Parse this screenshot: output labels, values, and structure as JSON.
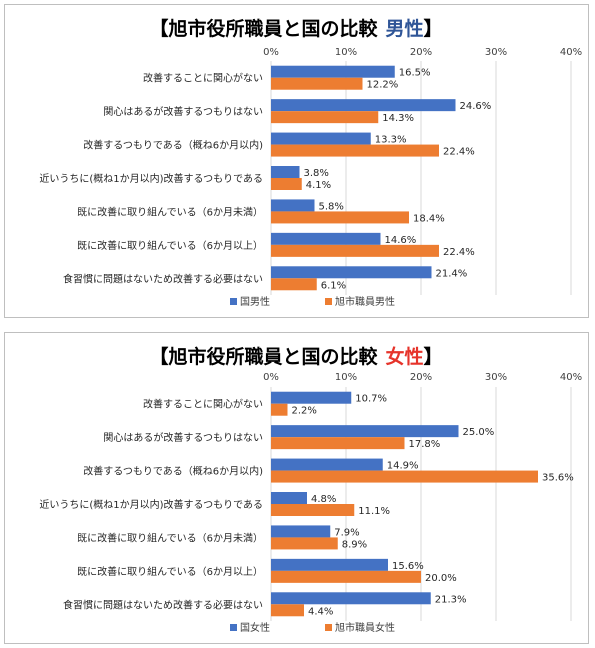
{
  "chart_data": [
    {
      "type": "bar",
      "orientation": "horizontal",
      "title_parts": {
        "open": "【",
        "main": "旭市役所職員と国の比較",
        "gender": "男性",
        "close": "】"
      },
      "gender_color": "#2f5597",
      "categories": [
        "改善することに関心がない",
        "関心はあるが改善するつもりはない",
        "改善するつもりである（概ね6か月以内)",
        "近いうちに(概ね1か月以内)改善するつもりである",
        "既に改善に取り組んでいる（6か月未満）",
        "既に改善に取り組んでいる（6か月以上）",
        "食習慣に問題はないため改善する必要はない"
      ],
      "series": [
        {
          "name": "国男性",
          "color": "#4472c4",
          "values": [
            16.5,
            24.6,
            13.3,
            3.8,
            5.8,
            14.6,
            21.4
          ],
          "value_labels": [
            "16.5%",
            "24.6%",
            "13.3%",
            "3.8%",
            "5.8%",
            "14.6%",
            "21.4%"
          ]
        },
        {
          "name": "旭市職員男性",
          "color": "#ed7d31",
          "values": [
            12.2,
            14.3,
            22.4,
            4.1,
            18.4,
            22.4,
            6.1
          ],
          "value_labels": [
            "12.2%",
            "14.3%",
            "22.4%",
            "4.1%",
            "18.4%",
            "22.4%",
            "6.1%"
          ]
        }
      ],
      "xlim": [
        0,
        40
      ],
      "ticks": [
        0,
        10,
        20,
        30,
        40
      ],
      "tick_labels": [
        "0%",
        "10%",
        "20%",
        "30%",
        "40%"
      ],
      "grid": true,
      "legend_position": "bottom"
    },
    {
      "type": "bar",
      "orientation": "horizontal",
      "title_parts": {
        "open": "【",
        "main": "旭市役所職員と国の比較",
        "gender": "女性",
        "close": "】"
      },
      "gender_color": "#e6332a",
      "categories": [
        "改善することに関心がない",
        "関心はあるが改善するつもりはない",
        "改善するつもりである（概ね6か月以内)",
        "近いうちに(概ね1か月以内)改善するつもりである",
        "既に改善に取り組んでいる（6か月未満）",
        "既に改善に取り組んでいる（6か月以上）",
        "食習慣に問題はないため改善する必要はない"
      ],
      "series": [
        {
          "name": "国女性",
          "color": "#4472c4",
          "values": [
            10.7,
            25.0,
            14.9,
            4.8,
            7.9,
            15.6,
            21.3
          ],
          "value_labels": [
            "10.7%",
            "25.0%",
            "14.9%",
            "4.8%",
            "7.9%",
            "15.6%",
            "21.3%"
          ]
        },
        {
          "name": "旭市職員女性",
          "color": "#ed7d31",
          "values": [
            2.2,
            17.8,
            35.6,
            11.1,
            8.9,
            20.0,
            4.4
          ],
          "value_labels": [
            "2.2%",
            "17.8%",
            "35.6%",
            "11.1%",
            "8.9%",
            "20.0%",
            "4.4%"
          ]
        }
      ],
      "xlim": [
        0,
        40
      ],
      "ticks": [
        0,
        10,
        20,
        30,
        40
      ],
      "tick_labels": [
        "0%",
        "10%",
        "20%",
        "30%",
        "40%"
      ],
      "grid": true,
      "legend_position": "bottom"
    }
  ]
}
